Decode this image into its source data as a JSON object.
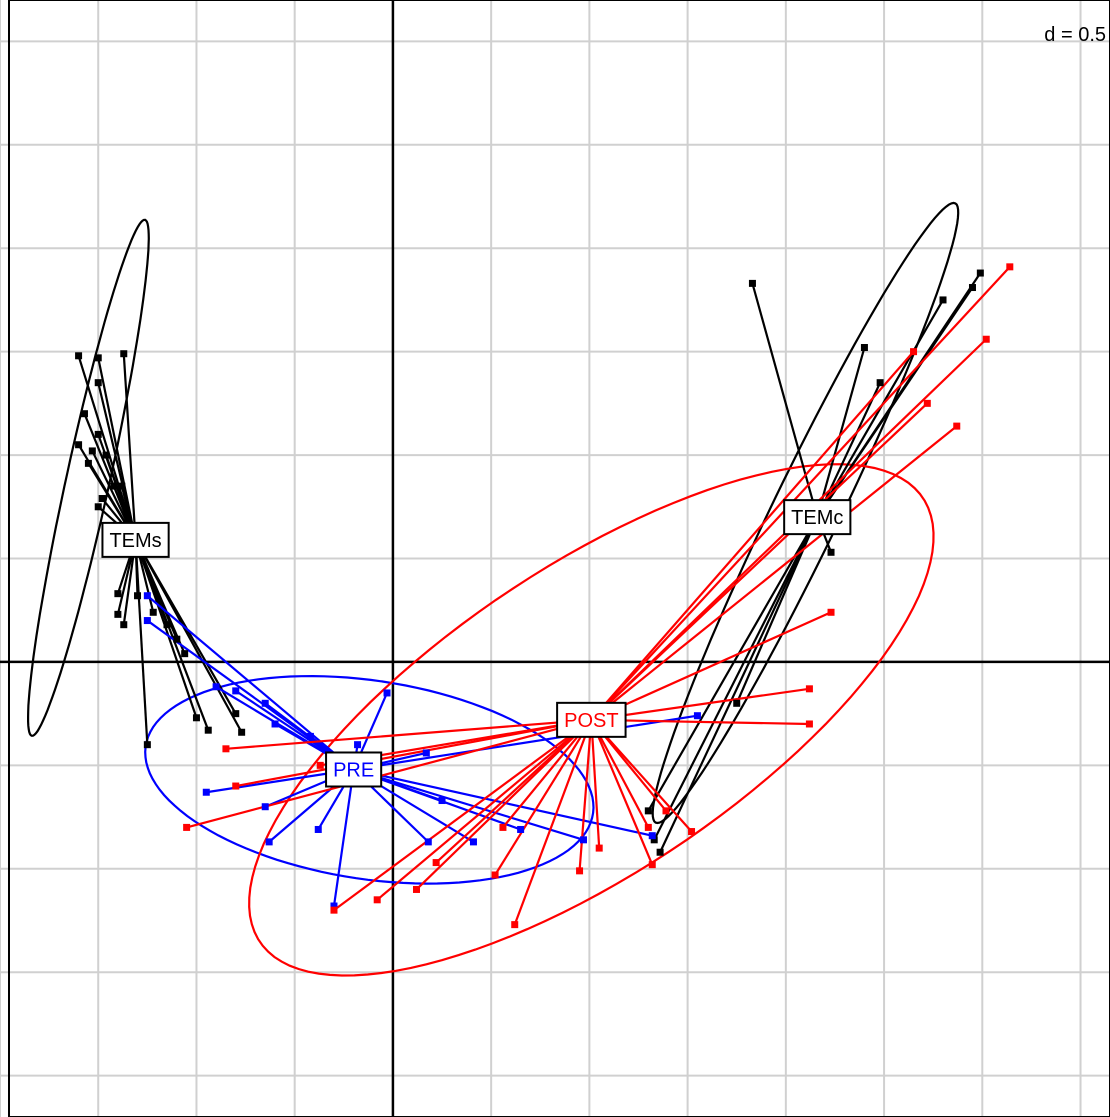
{
  "chart_data": {
    "type": "scatter",
    "title": "",
    "xlabel": "",
    "ylabel": "",
    "grid": true,
    "grid_spacing_label": "d = 0.5",
    "xlim": [
      -2.0,
      3.65
    ],
    "ylim": [
      -2.2,
      3.2
    ],
    "origin_axes": true,
    "groups": [
      {
        "name": "TEMs",
        "color": "#000000",
        "centroid": [
          -1.31,
          0.59
        ],
        "ellipse": {
          "cx": -1.55,
          "cy": 0.89,
          "rx": 1.28,
          "ry": 0.11,
          "angle": 77
        },
        "points": [
          [
            -1.6,
            1.48
          ],
          [
            -1.5,
            1.47
          ],
          [
            -1.37,
            1.49
          ],
          [
            -1.5,
            1.35
          ],
          [
            -1.57,
            1.2
          ],
          [
            -1.5,
            1.1
          ],
          [
            -1.53,
            1.02
          ],
          [
            -1.6,
            1.05
          ],
          [
            -1.55,
            0.96
          ],
          [
            -1.46,
            1.0
          ],
          [
            -1.48,
            0.79
          ],
          [
            -1.5,
            0.75
          ],
          [
            -1.42,
            0.85
          ],
          [
            -1.38,
            0.85
          ],
          [
            -1.39,
            0.56
          ],
          [
            -1.4,
            0.33
          ],
          [
            -1.4,
            0.23
          ],
          [
            -1.37,
            0.18
          ],
          [
            -1.3,
            0.32
          ],
          [
            -1.22,
            0.24
          ],
          [
            -1.15,
            0.18
          ],
          [
            -1.1,
            0.11
          ],
          [
            -1.06,
            0.04
          ],
          [
            -1.0,
            -0.27
          ],
          [
            -0.94,
            -0.33
          ],
          [
            -0.77,
            -0.34
          ],
          [
            -0.8,
            -0.25
          ],
          [
            -1.25,
            -0.4
          ]
        ]
      },
      {
        "name": "TEMc",
        "color": "#000000",
        "centroid": [
          2.16,
          0.7
        ],
        "ellipse": {
          "cx": 2.1,
          "cy": 0.72,
          "rx": 1.68,
          "ry": 0.17,
          "angle": 63
        },
        "points": [
          [
            1.83,
            1.83
          ],
          [
            2.99,
            1.88
          ],
          [
            2.95,
            1.81
          ],
          [
            2.8,
            1.75
          ],
          [
            2.4,
            1.52
          ],
          [
            2.48,
            1.35
          ],
          [
            2.23,
            0.53
          ],
          [
            1.75,
            -0.2
          ],
          [
            1.3,
            -0.72
          ],
          [
            1.33,
            -0.86
          ],
          [
            1.36,
            -0.92
          ]
        ]
      },
      {
        "name": "PRE",
        "color": "#0000ff",
        "centroid": [
          -0.2,
          -0.52
        ],
        "ellipse": {
          "cx": -0.12,
          "cy": -0.57,
          "rx": 1.15,
          "ry": 0.48,
          "angle": -8
        },
        "points": [
          [
            -1.25,
            0.32
          ],
          [
            -1.25,
            0.2
          ],
          [
            -0.9,
            -0.12
          ],
          [
            -0.8,
            -0.14
          ],
          [
            -0.65,
            -0.2
          ],
          [
            -0.6,
            -0.3
          ],
          [
            -0.42,
            -0.36
          ],
          [
            -0.18,
            -0.4
          ],
          [
            -0.03,
            -0.15
          ],
          [
            0.17,
            -0.44
          ],
          [
            -0.95,
            -0.63
          ],
          [
            -0.65,
            -0.7
          ],
          [
            -0.63,
            -0.87
          ],
          [
            -0.38,
            -0.81
          ],
          [
            -0.3,
            -1.18
          ],
          [
            0.18,
            -0.87
          ],
          [
            0.25,
            -0.67
          ],
          [
            0.41,
            -0.87
          ],
          [
            0.65,
            -0.81
          ],
          [
            0.97,
            -0.86
          ],
          [
            1.32,
            -0.84
          ],
          [
            1.55,
            -0.26
          ]
        ]
      },
      {
        "name": "POST",
        "color": "#ff0000",
        "centroid": [
          1.01,
          -0.28
        ],
        "ellipse": {
          "cx": 1.01,
          "cy": -0.28,
          "rx": 2.0,
          "ry": 0.75,
          "angle": 32
        },
        "points": [
          [
            -0.85,
            -0.42
          ],
          [
            -0.8,
            -0.6
          ],
          [
            -1.05,
            -0.8
          ],
          [
            -0.37,
            -0.5
          ],
          [
            -0.3,
            -1.2
          ],
          [
            -0.08,
            -1.15
          ],
          [
            0.12,
            -1.1
          ],
          [
            0.22,
            -0.97
          ],
          [
            0.52,
            -1.03
          ],
          [
            0.56,
            -0.8
          ],
          [
            0.62,
            -1.27
          ],
          [
            0.95,
            -1.01
          ],
          [
            1.05,
            -0.9
          ],
          [
            1.3,
            -0.8
          ],
          [
            1.32,
            -0.98
          ],
          [
            1.52,
            -0.82
          ],
          [
            1.39,
            -0.72
          ],
          [
            2.12,
            -0.13
          ],
          [
            2.12,
            -0.3
          ],
          [
            2.23,
            0.24
          ],
          [
            2.87,
            1.14
          ],
          [
            3.02,
            1.56
          ],
          [
            3.14,
            1.91
          ],
          [
            2.65,
            1.5
          ],
          [
            2.72,
            1.25
          ]
        ]
      }
    ]
  },
  "label_style": {
    "border_color": "#000000",
    "font_size_px": 20
  }
}
